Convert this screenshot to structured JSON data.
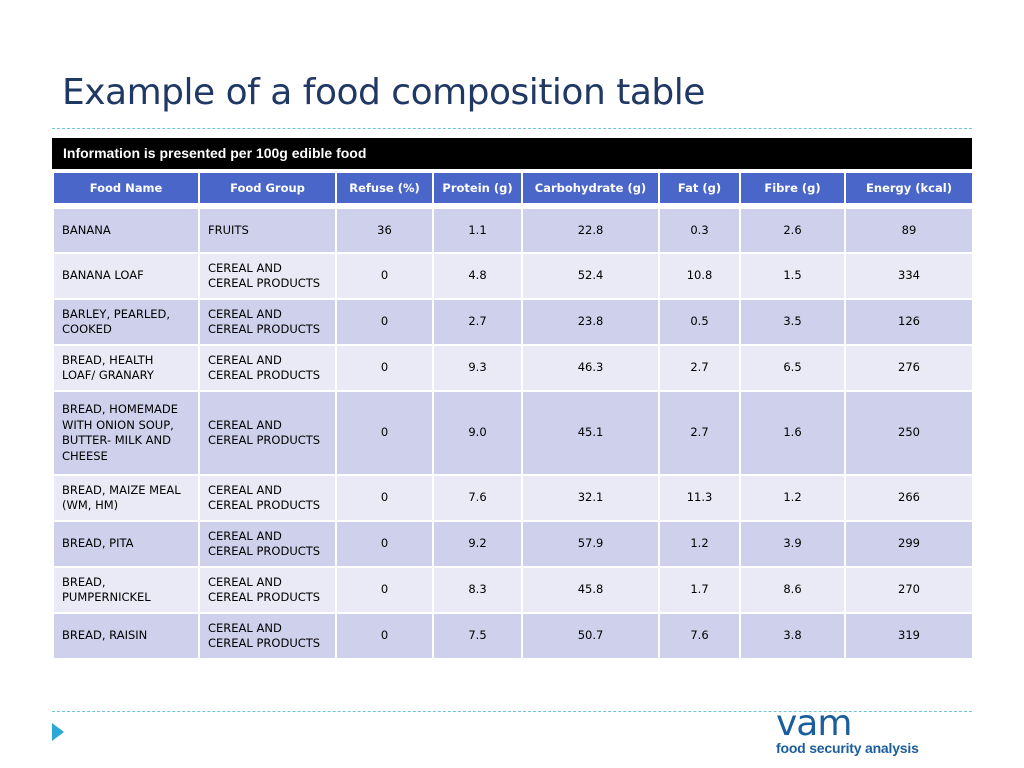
{
  "slide": {
    "title": "Example of a food composition table",
    "banner": "Information is presented per 100g edible food"
  },
  "table": {
    "columns": [
      "Food Name",
      "Food Group",
      "Refuse (%)",
      "Protein (g)",
      "Carbohydrate (g)",
      "Fat (g)",
      "Fibre (g)",
      "Energy (kcal)"
    ],
    "rows": [
      {
        "name_lines": [
          "BANANA"
        ],
        "group_lines": [
          "FRUITS"
        ],
        "refuse": "36",
        "protein": "1.1",
        "carbohydrate": "22.8",
        "fat": "0.3",
        "fibre": "2.6",
        "energy": "89"
      },
      {
        "name_lines": [
          "BANANA LOAF"
        ],
        "group_lines": [
          "CEREAL AND",
          "CEREAL PRODUCTS"
        ],
        "refuse": "0",
        "protein": "4.8",
        "carbohydrate": "52.4",
        "fat": "10.8",
        "fibre": "1.5",
        "energy": "334"
      },
      {
        "name_lines": [
          "BARLEY, PEARLED,",
          "COOKED"
        ],
        "group_lines": [
          "CEREAL AND",
          "CEREAL PRODUCTS"
        ],
        "refuse": "0",
        "protein": "2.7",
        "carbohydrate": "23.8",
        "fat": "0.5",
        "fibre": "3.5",
        "energy": "126"
      },
      {
        "name_lines": [
          "BREAD, HEALTH",
          "LOAF/ GRANARY"
        ],
        "group_lines": [
          "CEREAL AND",
          "CEREAL PRODUCTS"
        ],
        "refuse": "0",
        "protein": "9.3",
        "carbohydrate": "46.3",
        "fat": "2.7",
        "fibre": "6.5",
        "energy": "276"
      },
      {
        "name_lines": [
          "BREAD, HOMEMADE",
          "WITH ONION SOUP,",
          "BUTTER- MILK AND",
          "CHEESE"
        ],
        "group_lines": [
          "CEREAL AND",
          "CEREAL PRODUCTS"
        ],
        "refuse": "0",
        "protein": "9.0",
        "carbohydrate": "45.1",
        "fat": "2.7",
        "fibre": "1.6",
        "energy": "250"
      },
      {
        "name_lines": [
          "BREAD, MAIZE MEAL",
          "(WM, HM)"
        ],
        "group_lines": [
          "CEREAL AND",
          "CEREAL PRODUCTS"
        ],
        "refuse": "0",
        "protein": "7.6",
        "carbohydrate": "32.1",
        "fat": "11.3",
        "fibre": "1.2",
        "energy": "266"
      },
      {
        "name_lines": [
          "BREAD, PITA"
        ],
        "group_lines": [
          "CEREAL AND",
          "CEREAL PRODUCTS"
        ],
        "refuse": "0",
        "protein": "9.2",
        "carbohydrate": "57.9",
        "fat": "1.2",
        "fibre": "3.9",
        "energy": "299"
      },
      {
        "name_lines": [
          "BREAD,",
          "PUMPERNICKEL"
        ],
        "group_lines": [
          "CEREAL AND",
          "CEREAL PRODUCTS"
        ],
        "refuse": "0",
        "protein": "8.3",
        "carbohydrate": "45.8",
        "fat": "1.7",
        "fibre": "8.6",
        "energy": "270"
      },
      {
        "name_lines": [
          "BREAD, RAISIN"
        ],
        "group_lines": [
          "CEREAL AND",
          "CEREAL PRODUCTS"
        ],
        "refuse": "0",
        "protein": "7.5",
        "carbohydrate": "50.7",
        "fat": "7.6",
        "fibre": "3.8",
        "energy": "319"
      }
    ]
  },
  "logo": {
    "word": "vam",
    "tagline": "food security analysis"
  },
  "colors": {
    "title": "#1f3864",
    "header_bg": "#4a66c9",
    "row_odd": "#cfd1ec",
    "row_even": "#e9eaf5",
    "rule": "#6fc3d9",
    "bullet": "#2aa8d8",
    "logo": "#1b5e9e"
  },
  "icons": {
    "bullet": "triangle-bullet-icon"
  }
}
